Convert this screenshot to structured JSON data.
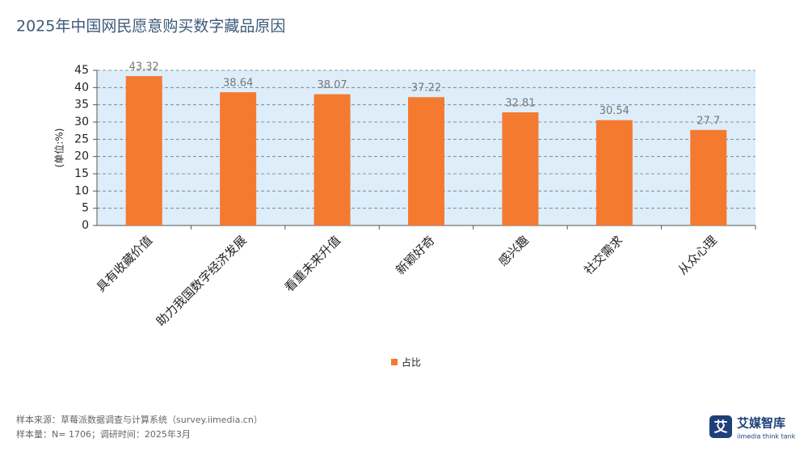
{
  "chart_data": {
    "type": "bar",
    "title": "2025年中国网民愿意购买数字藏品原因",
    "y_label": "(单位:%)",
    "categories": [
      "具有收藏价值",
      "助力我国数字经济发展",
      "看重未来升值",
      "新颖好奇",
      "感兴趣",
      "社交需求",
      "从众心理"
    ],
    "series": [
      {
        "name": "占比",
        "color": "#f47a30",
        "values": [
          43.32,
          38.64,
          38.07,
          37.22,
          32.81,
          30.54,
          27.7
        ]
      }
    ],
    "ylim": [
      0,
      45
    ],
    "yticks": [
      0,
      5,
      10,
      15,
      20,
      25,
      30,
      35,
      40,
      45
    ],
    "grid": true,
    "legend": "bottom"
  },
  "source": [
    "样本来源：草莓派数据调查与计算系统（survey.iimedia.cn）",
    "样本量：N= 1706；调研时间：2025年3月"
  ],
  "logo": {
    "icon": "艾",
    "name": "艾媒智库",
    "tagline": "iimedia think tank"
  }
}
